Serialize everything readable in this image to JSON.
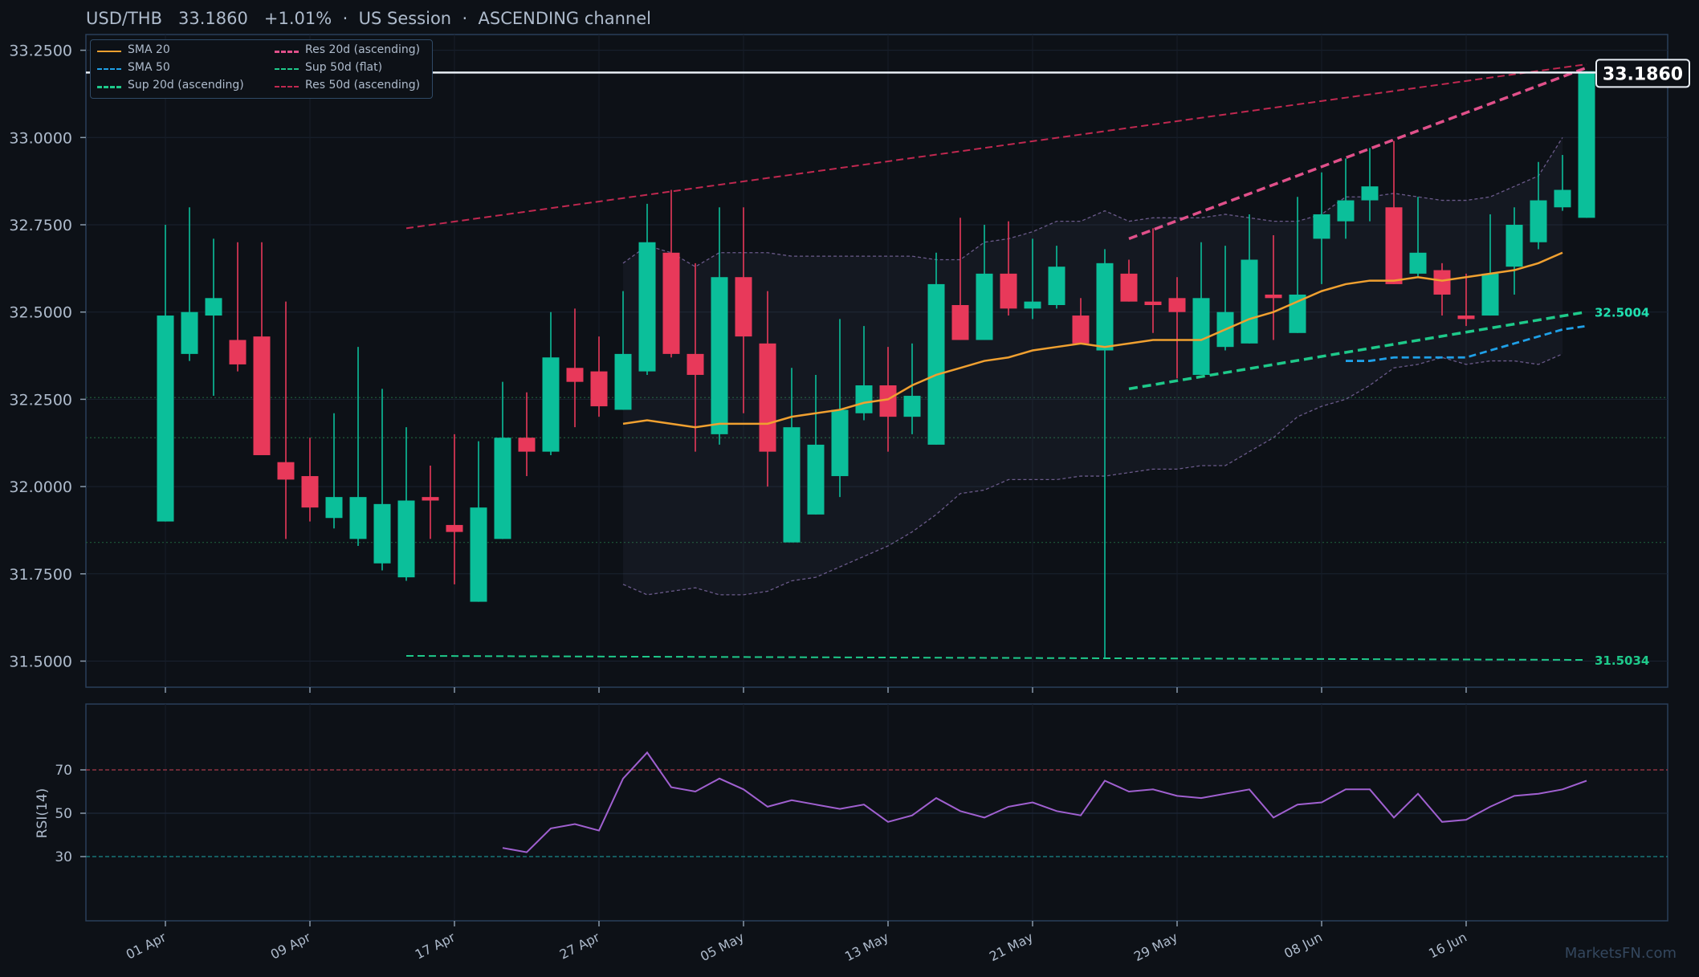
{
  "header": {
    "pair": "USD/THB",
    "price": "33.1860",
    "change": "+1.01%",
    "session": "US Session",
    "pattern": "ASCENDING channel",
    "sep": "·"
  },
  "watermark": "MarketsFN.com",
  "colors": {
    "background": "#0d1117",
    "bull": "#0bbf9a",
    "bear": "#e8395a",
    "sma20": "#f0a030",
    "sma50": "#1fa0e8",
    "support": "#1ec98a",
    "resistance20": "#e0508a",
    "resistance50": "#c02850",
    "rsi": "#a060d0",
    "band": "#6a5a8a"
  },
  "legend": [
    {
      "label": "SMA 20",
      "color": "#f0a030",
      "style": "solid"
    },
    {
      "label": "Res 20d (ascending)",
      "color": "#e0508a",
      "style": "dashed"
    },
    {
      "label": "SMA 50",
      "color": "#1fa0e8",
      "style": "dashed"
    },
    {
      "label": "Sup 50d (flat)",
      "color": "#1ec98a",
      "style": "dashed-thin"
    },
    {
      "label": "Sup 20d (ascending)",
      "color": "#1ec98a",
      "style": "dashed"
    },
    {
      "label": "Res 50d (ascending)",
      "color": "#c02850",
      "style": "dashed-thin"
    }
  ],
  "chart_data": {
    "type": "candlestick",
    "x_tick_labels": [
      "01 Apr",
      "09 Apr",
      "17 Apr",
      "27 Apr",
      "05 May",
      "13 May",
      "21 May",
      "29 May",
      "08 Jun",
      "16 Jun"
    ],
    "y_tick_labels": [
      "33.2500",
      "33.0000",
      "32.7500",
      "32.5000",
      "32.2500",
      "32.0000",
      "31.7500",
      "31.5000"
    ],
    "y_ticks": [
      33.25,
      33.0,
      32.75,
      32.5,
      32.25,
      32.0,
      31.75,
      31.5
    ],
    "ylim": [
      31.42,
      33.3
    ],
    "current_price": 33.186,
    "current_price_label": "33.1860",
    "level_labels": [
      {
        "value": 32.5004,
        "text": "32.5004"
      },
      {
        "value": 31.5034,
        "text": "31.5034"
      }
    ],
    "horizontal_levels": [
      32.255,
      32.14,
      31.84
    ],
    "candles": [
      {
        "o": 31.9,
        "h": 32.75,
        "l": 31.9,
        "c": 32.49
      },
      {
        "o": 32.38,
        "h": 32.8,
        "l": 32.36,
        "c": 32.5
      },
      {
        "o": 32.49,
        "h": 32.71,
        "l": 32.26,
        "c": 32.54
      },
      {
        "o": 32.42,
        "h": 32.7,
        "l": 32.33,
        "c": 32.35
      },
      {
        "o": 32.43,
        "h": 32.7,
        "l": 32.1,
        "c": 32.09
      },
      {
        "o": 32.07,
        "h": 32.53,
        "l": 31.85,
        "c": 32.02
      },
      {
        "o": 32.03,
        "h": 32.14,
        "l": 31.9,
        "c": 31.94
      },
      {
        "o": 31.91,
        "h": 32.21,
        "l": 31.88,
        "c": 31.97
      },
      {
        "o": 31.85,
        "h": 32.4,
        "l": 31.83,
        "c": 31.97
      },
      {
        "o": 31.78,
        "h": 32.28,
        "l": 31.76,
        "c": 31.95
      },
      {
        "o": 31.74,
        "h": 32.17,
        "l": 31.73,
        "c": 31.96
      },
      {
        "o": 31.97,
        "h": 32.06,
        "l": 31.85,
        "c": 31.96
      },
      {
        "o": 31.89,
        "h": 32.15,
        "l": 31.72,
        "c": 31.87
      },
      {
        "o": 31.67,
        "h": 32.13,
        "l": 31.67,
        "c": 31.94
      },
      {
        "o": 31.85,
        "h": 32.3,
        "l": 31.85,
        "c": 32.14
      },
      {
        "o": 32.14,
        "h": 32.27,
        "l": 32.03,
        "c": 32.1
      },
      {
        "o": 32.1,
        "h": 32.5,
        "l": 32.09,
        "c": 32.37
      },
      {
        "o": 32.34,
        "h": 32.51,
        "l": 32.17,
        "c": 32.3
      },
      {
        "o": 32.33,
        "h": 32.43,
        "l": 32.2,
        "c": 32.23
      },
      {
        "o": 32.22,
        "h": 32.56,
        "l": 32.22,
        "c": 32.38
      },
      {
        "o": 32.33,
        "h": 32.81,
        "l": 32.32,
        "c": 32.7
      },
      {
        "o": 32.67,
        "h": 32.85,
        "l": 32.37,
        "c": 32.38
      },
      {
        "o": 32.38,
        "h": 32.64,
        "l": 32.1,
        "c": 32.32
      },
      {
        "o": 32.15,
        "h": 32.8,
        "l": 32.12,
        "c": 32.6
      },
      {
        "o": 32.6,
        "h": 32.8,
        "l": 32.21,
        "c": 32.43
      },
      {
        "o": 32.41,
        "h": 32.56,
        "l": 32.0,
        "c": 32.1
      },
      {
        "o": 31.84,
        "h": 32.34,
        "l": 31.84,
        "c": 32.17
      },
      {
        "o": 31.92,
        "h": 32.32,
        "l": 31.92,
        "c": 32.12
      },
      {
        "o": 32.03,
        "h": 32.48,
        "l": 31.97,
        "c": 32.22
      },
      {
        "o": 32.21,
        "h": 32.46,
        "l": 32.19,
        "c": 32.29
      },
      {
        "o": 32.29,
        "h": 32.4,
        "l": 32.1,
        "c": 32.2
      },
      {
        "o": 32.2,
        "h": 32.41,
        "l": 32.15,
        "c": 32.26
      },
      {
        "o": 32.12,
        "h": 32.67,
        "l": 32.12,
        "c": 32.58
      },
      {
        "o": 32.52,
        "h": 32.77,
        "l": 32.42,
        "c": 32.42
      },
      {
        "o": 32.42,
        "h": 32.75,
        "l": 32.42,
        "c": 32.61
      },
      {
        "o": 32.61,
        "h": 32.76,
        "l": 32.49,
        "c": 32.51
      },
      {
        "o": 32.51,
        "h": 32.71,
        "l": 32.48,
        "c": 32.53
      },
      {
        "o": 32.52,
        "h": 32.69,
        "l": 32.51,
        "c": 32.63
      },
      {
        "o": 32.49,
        "h": 32.54,
        "l": 32.41,
        "c": 32.41
      },
      {
        "o": 32.39,
        "h": 32.68,
        "l": 31.51,
        "c": 32.64
      },
      {
        "o": 32.61,
        "h": 32.65,
        "l": 32.53,
        "c": 32.53
      },
      {
        "o": 32.53,
        "h": 32.74,
        "l": 32.44,
        "c": 32.52
      },
      {
        "o": 32.54,
        "h": 32.6,
        "l": 32.31,
        "c": 32.5
      },
      {
        "o": 32.32,
        "h": 32.7,
        "l": 32.32,
        "c": 32.54
      },
      {
        "o": 32.4,
        "h": 32.69,
        "l": 32.39,
        "c": 32.5
      },
      {
        "o": 32.41,
        "h": 32.78,
        "l": 32.41,
        "c": 32.65
      },
      {
        "o": 32.55,
        "h": 32.72,
        "l": 32.42,
        "c": 32.54
      },
      {
        "o": 32.44,
        "h": 32.83,
        "l": 32.44,
        "c": 32.55
      },
      {
        "o": 32.71,
        "h": 32.9,
        "l": 32.58,
        "c": 32.78
      },
      {
        "o": 32.76,
        "h": 32.94,
        "l": 32.71,
        "c": 32.82
      },
      {
        "o": 32.82,
        "h": 32.97,
        "l": 32.76,
        "c": 32.86
      },
      {
        "o": 32.8,
        "h": 32.99,
        "l": 32.58,
        "c": 32.58
      },
      {
        "o": 32.61,
        "h": 32.83,
        "l": 32.6,
        "c": 32.67
      },
      {
        "o": 32.62,
        "h": 32.64,
        "l": 32.49,
        "c": 32.55
      },
      {
        "o": 32.49,
        "h": 32.61,
        "l": 32.46,
        "c": 32.48
      },
      {
        "o": 32.49,
        "h": 32.78,
        "l": 32.49,
        "c": 32.61
      },
      {
        "o": 32.63,
        "h": 32.8,
        "l": 32.55,
        "c": 32.75
      },
      {
        "o": 32.7,
        "h": 32.93,
        "l": 32.68,
        "c": 32.82
      },
      {
        "o": 32.8,
        "h": 32.95,
        "l": 32.79,
        "c": 32.85
      },
      {
        "o": 32.77,
        "h": 33.19,
        "l": 32.77,
        "c": 33.19
      }
    ],
    "sma20": {
      "start": 19,
      "values": [
        32.18,
        32.19,
        32.18,
        32.17,
        32.18,
        32.18,
        32.18,
        32.2,
        32.21,
        32.22,
        32.24,
        32.25,
        32.29,
        32.32,
        32.34,
        32.36,
        32.37,
        32.39,
        32.4,
        32.41,
        32.4,
        32.41,
        32.42,
        32.42,
        32.42,
        32.45,
        32.48,
        32.5,
        32.53,
        32.56,
        32.58,
        32.59,
        32.59,
        32.6,
        32.59,
        32.6,
        32.61,
        32.62,
        32.64,
        32.67
      ]
    },
    "sma50": {
      "start": 49,
      "values": [
        32.36,
        32.36,
        32.37,
        32.37,
        32.37,
        32.37,
        32.39,
        32.41,
        32.43,
        32.45,
        32.46
      ]
    },
    "upper_band": {
      "start": 19,
      "values": [
        32.64,
        32.69,
        32.67,
        32.63,
        32.67,
        32.67,
        32.67,
        32.66,
        32.66,
        32.66,
        32.66,
        32.66,
        32.66,
        32.65,
        32.65,
        32.7,
        32.71,
        32.73,
        32.76,
        32.76,
        32.79,
        32.76,
        32.77,
        32.77,
        32.77,
        32.78,
        32.77,
        32.76,
        32.76,
        32.78,
        32.83,
        32.83,
        32.84,
        32.83,
        32.82,
        32.82,
        32.83,
        32.86,
        32.89,
        33.0
      ]
    },
    "lower_band": {
      "start": 19,
      "values": [
        31.72,
        31.69,
        31.7,
        31.71,
        31.69,
        31.69,
        31.7,
        31.73,
        31.74,
        31.77,
        31.8,
        31.83,
        31.87,
        31.92,
        31.98,
        31.99,
        32.02,
        32.02,
        32.02,
        32.03,
        32.03,
        32.04,
        32.05,
        32.05,
        32.06,
        32.06,
        32.1,
        32.14,
        32.2,
        32.23,
        32.25,
        32.29,
        32.34,
        32.35,
        32.37,
        32.35,
        32.36,
        32.36,
        32.35,
        32.38
      ]
    },
    "res50": {
      "from": [
        10,
        32.74
      ],
      "to": [
        59,
        33.21
      ]
    },
    "res20": {
      "from": [
        40,
        32.71
      ],
      "to": [
        59,
        33.2
      ]
    },
    "sup20": {
      "from": [
        40,
        32.28
      ],
      "to": [
        59,
        32.5004
      ]
    },
    "sup50": {
      "from": [
        10,
        31.515
      ],
      "to": [
        59,
        31.5034
      ]
    },
    "rsi": {
      "label": "RSI(14)",
      "ylim": [
        0,
        100
      ],
      "levels": [
        70,
        50,
        30
      ],
      "tick_labels": [
        "70",
        "50",
        "30"
      ],
      "start": 14,
      "values": [
        34,
        32,
        43,
        45,
        42,
        66,
        78,
        62,
        60,
        66,
        61,
        53,
        56,
        54,
        52,
        54,
        46,
        49,
        57,
        51,
        48,
        53,
        55,
        51,
        49,
        65,
        60,
        61,
        58,
        57,
        59,
        61,
        48,
        54,
        55,
        61,
        61,
        48,
        59,
        46,
        47,
        53,
        58,
        59,
        61,
        65
      ]
    }
  }
}
